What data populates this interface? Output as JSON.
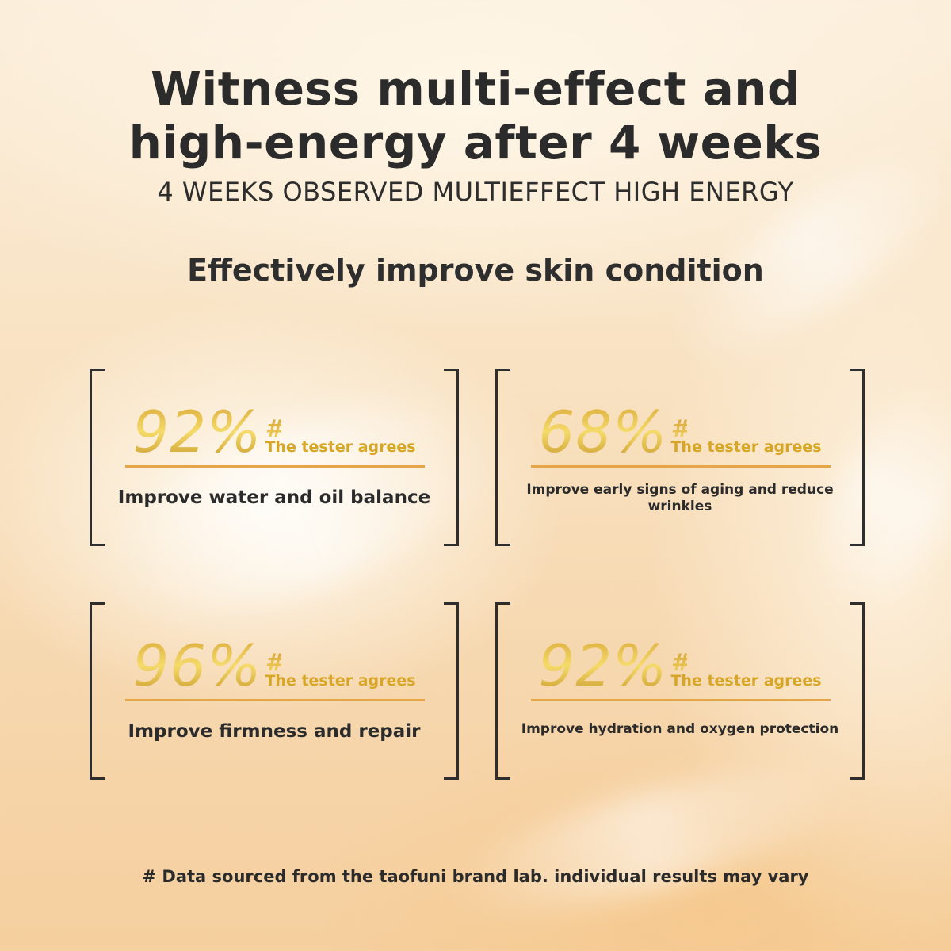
{
  "header": {
    "title_line1": "Witness multi-effect and",
    "title_line2": "high-energy after 4 weeks",
    "subtitle": "4 WEEKS OBSERVED MULTIEFFECT HIGH ENERGY"
  },
  "section_heading": "Effectively improve skin condition",
  "stats": [
    {
      "percent": "92%",
      "mark": "#",
      "label": "The tester agrees",
      "benefit": "Improve water and oil balance"
    },
    {
      "percent": "68%",
      "mark": "#",
      "label": "The tester agrees",
      "benefit": "Improve early signs of aging and reduce wrinkles"
    },
    {
      "percent": "96%",
      "mark": "#",
      "label": "The tester agrees",
      "benefit": "Improve firmness and repair"
    },
    {
      "percent": "92%",
      "mark": "#",
      "label": "The tester agrees",
      "benefit": "Improve hydration and oxygen protection"
    }
  ],
  "footnote": "# Data sourced from the taofuni brand lab. individual results may vary",
  "colors": {
    "gold": "#d7a625",
    "divider": "#e6a648",
    "text": "#2b2b2b"
  }
}
